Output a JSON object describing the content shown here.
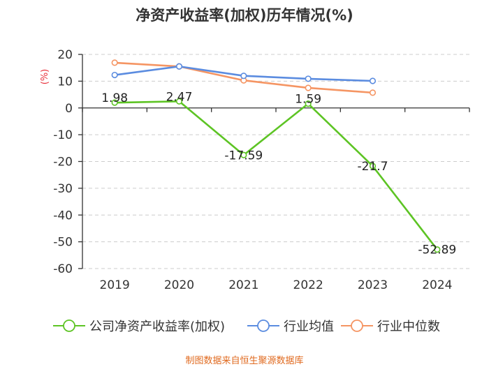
{
  "chart_data": {
    "type": "line",
    "title": "净资产收益率(加权)历年情况(%)",
    "ylabel": "(%)",
    "xlabel": "",
    "categories": [
      "2019",
      "2020",
      "2021",
      "2022",
      "2023",
      "2024"
    ],
    "ylim": [
      -60,
      20
    ],
    "yticks": [
      20,
      10,
      0,
      -10,
      -20,
      -30,
      -40,
      -50,
      -60
    ],
    "ytick_labels": [
      "20",
      "10",
      "0",
      "-10",
      "-20",
      "-30",
      "-40",
      "-50",
      "-60"
    ],
    "grid": true,
    "legend_position": "bottom",
    "series": [
      {
        "name": "公司净资产收益率(加权)",
        "color": "#5dc424",
        "marker": "circle",
        "show_labels": true,
        "values": [
          1.98,
          2.47,
          -17.59,
          1.59,
          -21.7,
          -52.89
        ],
        "labels": [
          "1.98",
          "2.47",
          "-17.59",
          "1.59",
          "-21.7",
          "-52.89"
        ]
      },
      {
        "name": "行业均值",
        "color": "#5b8ce0",
        "marker": "circle",
        "show_labels": false,
        "values": [
          12.3,
          15.5,
          12.0,
          10.9,
          10.1,
          null
        ]
      },
      {
        "name": "行业中位数",
        "color": "#f59563",
        "marker": "circle",
        "show_labels": false,
        "values": [
          16.9,
          15.5,
          10.3,
          7.5,
          5.7,
          null
        ]
      }
    ]
  },
  "source": "制图数据来自恒生聚源数据库"
}
